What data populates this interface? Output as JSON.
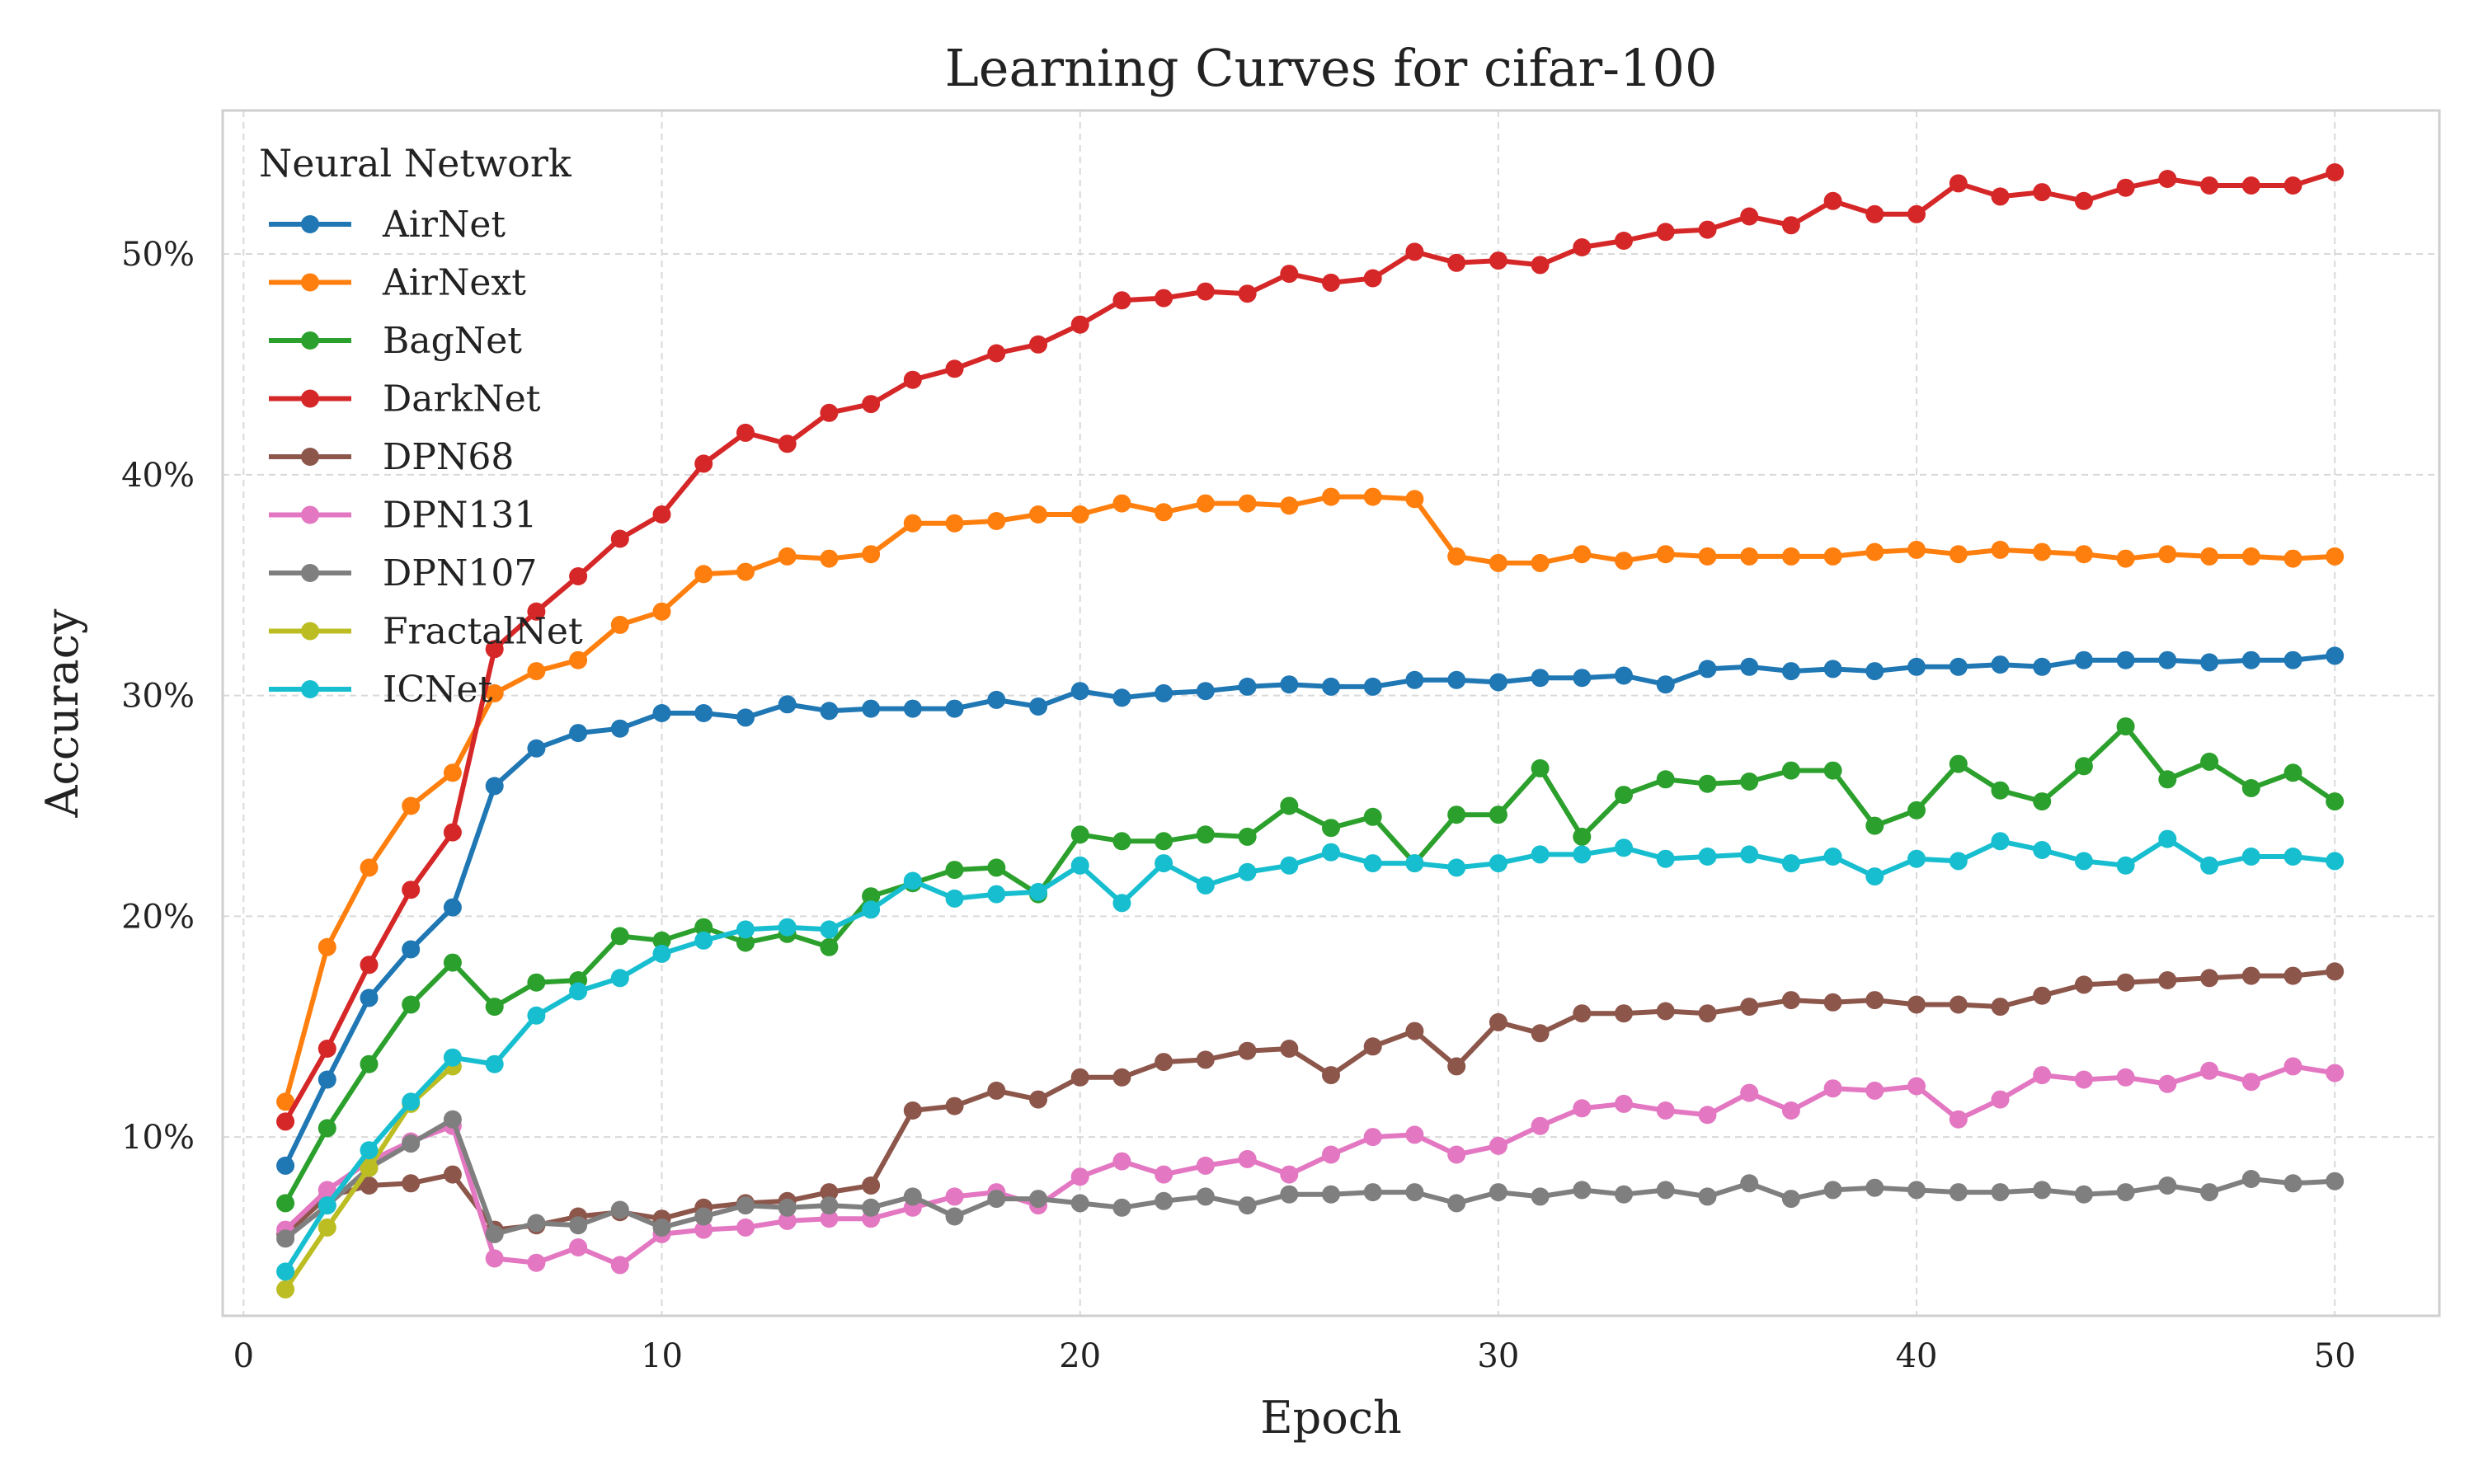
{
  "chart_data": {
    "type": "line",
    "title": "Learning Curves for cifar-100",
    "xlabel": "Epoch",
    "ylabel": "Accuracy",
    "xlim": [
      -0.5,
      52.5
    ],
    "ylim": [
      1.9,
      56.5
    ],
    "xticks": [
      0,
      10,
      20,
      30,
      40,
      50
    ],
    "xtick_labels": [
      "0",
      "10",
      "20",
      "30",
      "40",
      "50"
    ],
    "yticks": [
      10,
      20,
      30,
      40,
      50
    ],
    "ytick_labels": [
      "10%",
      "20%",
      "30%",
      "40%",
      "50%"
    ],
    "grid": true,
    "legend": {
      "title": "Neural Network",
      "placement": "upper-left"
    },
    "series": [
      {
        "name": "AirNet",
        "color": "#1f77b4",
        "x": [
          1,
          2,
          3,
          4,
          5,
          6,
          7,
          8,
          9,
          10,
          11,
          12,
          13,
          14,
          15,
          16,
          17,
          18,
          19,
          20,
          21,
          22,
          23,
          24,
          25,
          26,
          27,
          28,
          29,
          30,
          31,
          32,
          33,
          34,
          35,
          36,
          37,
          38,
          39,
          40,
          41,
          42,
          43,
          44,
          45,
          46,
          47,
          48,
          49,
          50
        ],
        "values": [
          8.7,
          12.6,
          16.3,
          18.5,
          20.4,
          25.9,
          27.6,
          28.3,
          28.5,
          29.2,
          29.2,
          29.0,
          29.6,
          29.3,
          29.4,
          29.4,
          29.4,
          29.8,
          29.5,
          30.2,
          29.9,
          30.1,
          30.2,
          30.4,
          30.5,
          30.4,
          30.4,
          30.7,
          30.7,
          30.6,
          30.8,
          30.8,
          30.9,
          30.5,
          31.2,
          31.3,
          31.1,
          31.2,
          31.1,
          31.3,
          31.3,
          31.4,
          31.3,
          31.6,
          31.6,
          31.6,
          31.5,
          31.6,
          31.6,
          31.8
        ]
      },
      {
        "name": "AirNext",
        "color": "#ff7f0e",
        "x": [
          1,
          2,
          3,
          4,
          5,
          6,
          7,
          8,
          9,
          10,
          11,
          12,
          13,
          14,
          15,
          16,
          17,
          18,
          19,
          20,
          21,
          22,
          23,
          24,
          25,
          26,
          27,
          28,
          29,
          30,
          31,
          32,
          33,
          34,
          35,
          36,
          37,
          38,
          39,
          40,
          41,
          42,
          43,
          44,
          45,
          46,
          47,
          48,
          49,
          50
        ],
        "values": [
          11.6,
          18.6,
          22.2,
          25.0,
          26.5,
          30.1,
          31.1,
          31.6,
          33.2,
          33.8,
          35.5,
          35.6,
          36.3,
          36.2,
          36.4,
          37.8,
          37.8,
          37.9,
          38.2,
          38.2,
          38.7,
          38.3,
          38.7,
          38.7,
          38.6,
          39.0,
          39.0,
          38.9,
          36.3,
          36.0,
          36.0,
          36.4,
          36.1,
          36.4,
          36.3,
          36.3,
          36.3,
          36.3,
          36.5,
          36.6,
          36.4,
          36.6,
          36.5,
          36.4,
          36.2,
          36.4,
          36.3,
          36.3,
          36.2,
          36.3
        ]
      },
      {
        "name": "BagNet",
        "color": "#2ca02c",
        "x": [
          1,
          2,
          3,
          4,
          5,
          6,
          7,
          8,
          9,
          10,
          11,
          12,
          13,
          14,
          15,
          16,
          17,
          18,
          19,
          20,
          21,
          22,
          23,
          24,
          25,
          26,
          27,
          28,
          29,
          30,
          31,
          32,
          33,
          34,
          35,
          36,
          37,
          38,
          39,
          40,
          41,
          42,
          43,
          44,
          45,
          46,
          47,
          48,
          49,
          50
        ],
        "values": [
          7.0,
          10.4,
          13.3,
          16.0,
          17.9,
          15.9,
          17.0,
          17.1,
          19.1,
          18.9,
          19.5,
          18.8,
          19.2,
          18.6,
          20.9,
          21.5,
          22.1,
          22.2,
          21.0,
          23.7,
          23.4,
          23.4,
          23.7,
          23.6,
          25.0,
          24.0,
          24.5,
          22.4,
          24.6,
          24.6,
          26.7,
          23.6,
          25.5,
          26.2,
          26.0,
          26.1,
          26.6,
          26.6,
          24.1,
          24.8,
          26.9,
          25.7,
          25.2,
          26.8,
          28.6,
          26.2,
          27.0,
          25.8,
          26.5,
          25.2
        ]
      },
      {
        "name": "DarkNet",
        "color": "#d62728",
        "x": [
          1,
          2,
          3,
          4,
          5,
          6,
          7,
          8,
          9,
          10,
          11,
          12,
          13,
          14,
          15,
          16,
          17,
          18,
          19,
          20,
          21,
          22,
          23,
          24,
          25,
          26,
          27,
          28,
          29,
          30,
          31,
          32,
          33,
          34,
          35,
          36,
          37,
          38,
          39,
          40,
          41,
          42,
          43,
          44,
          45,
          46,
          47,
          48,
          49,
          50
        ],
        "values": [
          10.7,
          14.0,
          17.8,
          21.2,
          23.8,
          32.1,
          33.8,
          35.4,
          37.1,
          38.2,
          40.5,
          41.9,
          41.4,
          42.8,
          43.2,
          44.3,
          44.8,
          45.5,
          45.9,
          46.8,
          47.9,
          48.0,
          48.3,
          48.2,
          49.1,
          48.7,
          48.9,
          50.1,
          49.6,
          49.7,
          49.5,
          50.3,
          50.6,
          51.0,
          51.1,
          51.7,
          51.3,
          52.4,
          51.8,
          51.8,
          53.2,
          52.6,
          52.8,
          52.4,
          53.0,
          53.4,
          53.1,
          53.1,
          53.1,
          53.7
        ]
      },
      {
        "name": "DPN68",
        "color": "#8c564b",
        "x": [
          1,
          2,
          3,
          4,
          5,
          6,
          7,
          8,
          9,
          10,
          11,
          12,
          13,
          14,
          15,
          16,
          17,
          18,
          19,
          20,
          21,
          22,
          23,
          24,
          25,
          26,
          27,
          28,
          29,
          30,
          31,
          32,
          33,
          34,
          35,
          36,
          37,
          38,
          39,
          40,
          41,
          42,
          43,
          44,
          45,
          46,
          47,
          48,
          49,
          50
        ],
        "values": [
          5.6,
          7.3,
          7.8,
          7.9,
          8.3,
          5.8,
          6.0,
          6.4,
          6.6,
          6.3,
          6.8,
          7.0,
          7.1,
          7.5,
          7.8,
          11.2,
          11.4,
          12.1,
          11.7,
          12.7,
          12.7,
          13.4,
          13.5,
          13.9,
          14.0,
          12.8,
          14.1,
          14.8,
          13.2,
          15.2,
          14.7,
          15.6,
          15.6,
          15.7,
          15.6,
          15.9,
          16.2,
          16.1,
          16.2,
          16.0,
          16.0,
          15.9,
          16.4,
          16.9,
          17.0,
          17.1,
          17.2,
          17.3,
          17.3,
          17.5
        ]
      },
      {
        "name": "DPN131",
        "color": "#e377c2",
        "x": [
          1,
          2,
          3,
          4,
          5,
          6,
          7,
          8,
          9,
          10,
          11,
          12,
          13,
          14,
          15,
          16,
          17,
          18,
          19,
          20,
          21,
          22,
          23,
          24,
          25,
          26,
          27,
          28,
          29,
          30,
          31,
          32,
          33,
          34,
          35,
          36,
          37,
          38,
          39,
          40,
          41,
          42,
          43,
          44,
          45,
          46,
          47,
          48,
          49,
          50
        ],
        "values": [
          5.8,
          7.6,
          8.9,
          9.8,
          10.5,
          4.5,
          4.3,
          5.0,
          4.2,
          5.6,
          5.8,
          5.9,
          6.2,
          6.3,
          6.3,
          6.8,
          7.3,
          7.5,
          6.9,
          8.2,
          8.9,
          8.3,
          8.7,
          9.0,
          8.3,
          9.2,
          10.0,
          10.1,
          9.2,
          9.6,
          10.5,
          11.3,
          11.5,
          11.2,
          11.0,
          12.0,
          11.2,
          12.2,
          12.1,
          12.3,
          10.8,
          11.7,
          12.8,
          12.6,
          12.7,
          12.4,
          13.0,
          12.5,
          13.2,
          12.9
        ]
      },
      {
        "name": "DPN107",
        "color": "#7f7f7f",
        "x": [
          1,
          2,
          3,
          4,
          5,
          6,
          7,
          8,
          9,
          10,
          11,
          12,
          13,
          14,
          15,
          16,
          17,
          18,
          19,
          20,
          21,
          22,
          23,
          24,
          25,
          26,
          27,
          28,
          29,
          30,
          31,
          32,
          33,
          34,
          35,
          36,
          37,
          38,
          39,
          40,
          41,
          42,
          43,
          44,
          45,
          46,
          47,
          48,
          49,
          50
        ],
        "values": [
          5.4,
          6.9,
          8.6,
          9.7,
          10.8,
          5.6,
          6.1,
          6.0,
          6.7,
          5.9,
          6.4,
          6.9,
          6.8,
          6.9,
          6.8,
          7.3,
          6.4,
          7.2,
          7.2,
          7.0,
          6.8,
          7.1,
          7.3,
          6.9,
          7.4,
          7.4,
          7.5,
          7.5,
          7.0,
          7.5,
          7.3,
          7.6,
          7.4,
          7.6,
          7.3,
          7.9,
          7.2,
          7.6,
          7.7,
          7.6,
          7.5,
          7.5,
          7.6,
          7.4,
          7.5,
          7.8,
          7.5,
          8.1,
          7.9,
          8.0
        ]
      },
      {
        "name": "FractalNet",
        "color": "#bcbd22",
        "x": [
          1,
          2,
          3,
          4,
          5
        ],
        "values": [
          3.1,
          5.9,
          8.6,
          11.5,
          13.2
        ]
      },
      {
        "name": "ICNet",
        "color": "#17becf",
        "x": [
          1,
          2,
          3,
          4,
          5,
          6,
          7,
          8,
          9,
          10,
          11,
          12,
          13,
          14,
          15,
          16,
          17,
          18,
          19,
          20,
          21,
          22,
          23,
          24,
          25,
          26,
          27,
          28,
          29,
          30,
          31,
          32,
          33,
          34,
          35,
          36,
          37,
          38,
          39,
          40,
          41,
          42,
          43,
          44,
          45,
          46,
          47,
          48,
          49,
          50
        ],
        "values": [
          3.9,
          6.9,
          9.4,
          11.6,
          13.6,
          13.3,
          15.5,
          16.6,
          17.2,
          18.3,
          18.9,
          19.4,
          19.5,
          19.4,
          20.3,
          21.6,
          20.8,
          21.0,
          21.1,
          22.3,
          20.6,
          22.4,
          21.4,
          22.0,
          22.3,
          22.9,
          22.4,
          22.4,
          22.2,
          22.4,
          22.8,
          22.8,
          23.1,
          22.6,
          22.7,
          22.8,
          22.4,
          22.7,
          21.8,
          22.6,
          22.5,
          23.4,
          23.0,
          22.5,
          22.3,
          23.5,
          22.3,
          22.7,
          22.7,
          22.5
        ]
      }
    ]
  }
}
